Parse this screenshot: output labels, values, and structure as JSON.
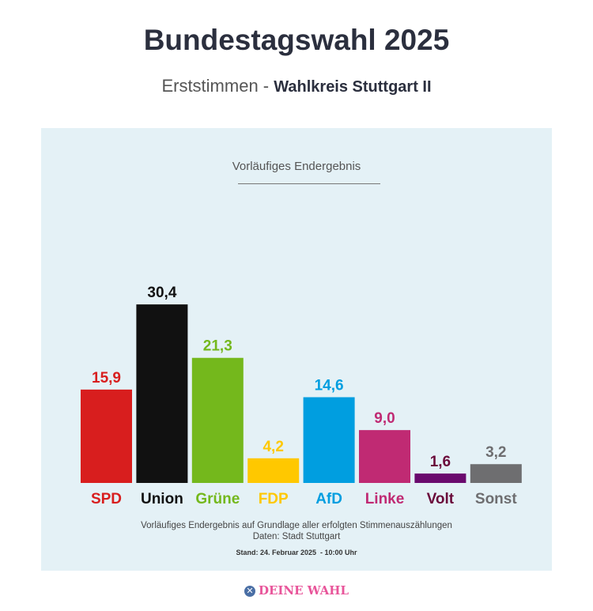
{
  "header": {
    "title": "Bundestagswahl 2025",
    "subtitle_prefix": "Erststimmen -",
    "subtitle_bold": "Wahlkreis Stuttgart II"
  },
  "chart_data": {
    "type": "bar",
    "title": "Vorläufiges Endergebnis",
    "categories": [
      "SPD",
      "Union",
      "Grüne",
      "FDP",
      "AfD",
      "Linke",
      "Volt",
      "Sonst"
    ],
    "values": [
      15.9,
      30.4,
      21.3,
      4.2,
      14.6,
      9.0,
      1.6,
      3.2
    ],
    "value_labels": [
      "15,9",
      "30,4",
      "21,3",
      "4,2",
      "14,6",
      "9,0",
      "1,6",
      "3,2"
    ],
    "colors": [
      "#d81e1e",
      "#111111",
      "#74b81c",
      "#ffc800",
      "#009ee0",
      "#c02a73",
      "#6a0a6e",
      "#6e6e70"
    ],
    "label_colors": [
      "#d81e1e",
      "#111111",
      "#74b81c",
      "#ffc800",
      "#009ee0",
      "#c02a73",
      "#6a0a3a",
      "#6e6e70"
    ],
    "grid": false
  },
  "footer": {
    "note": "Vorläufiges Endergebnis auf Grundlage aller erfolgten Stimmenauszählungen",
    "source": "Daten: Stadt Stuttgart",
    "stand": "Stand: 24. Februar 2025  - 10:00 Uhr"
  },
  "logo": {
    "text": "DEINE WAHL",
    "icon": "ballot-cross-icon"
  }
}
